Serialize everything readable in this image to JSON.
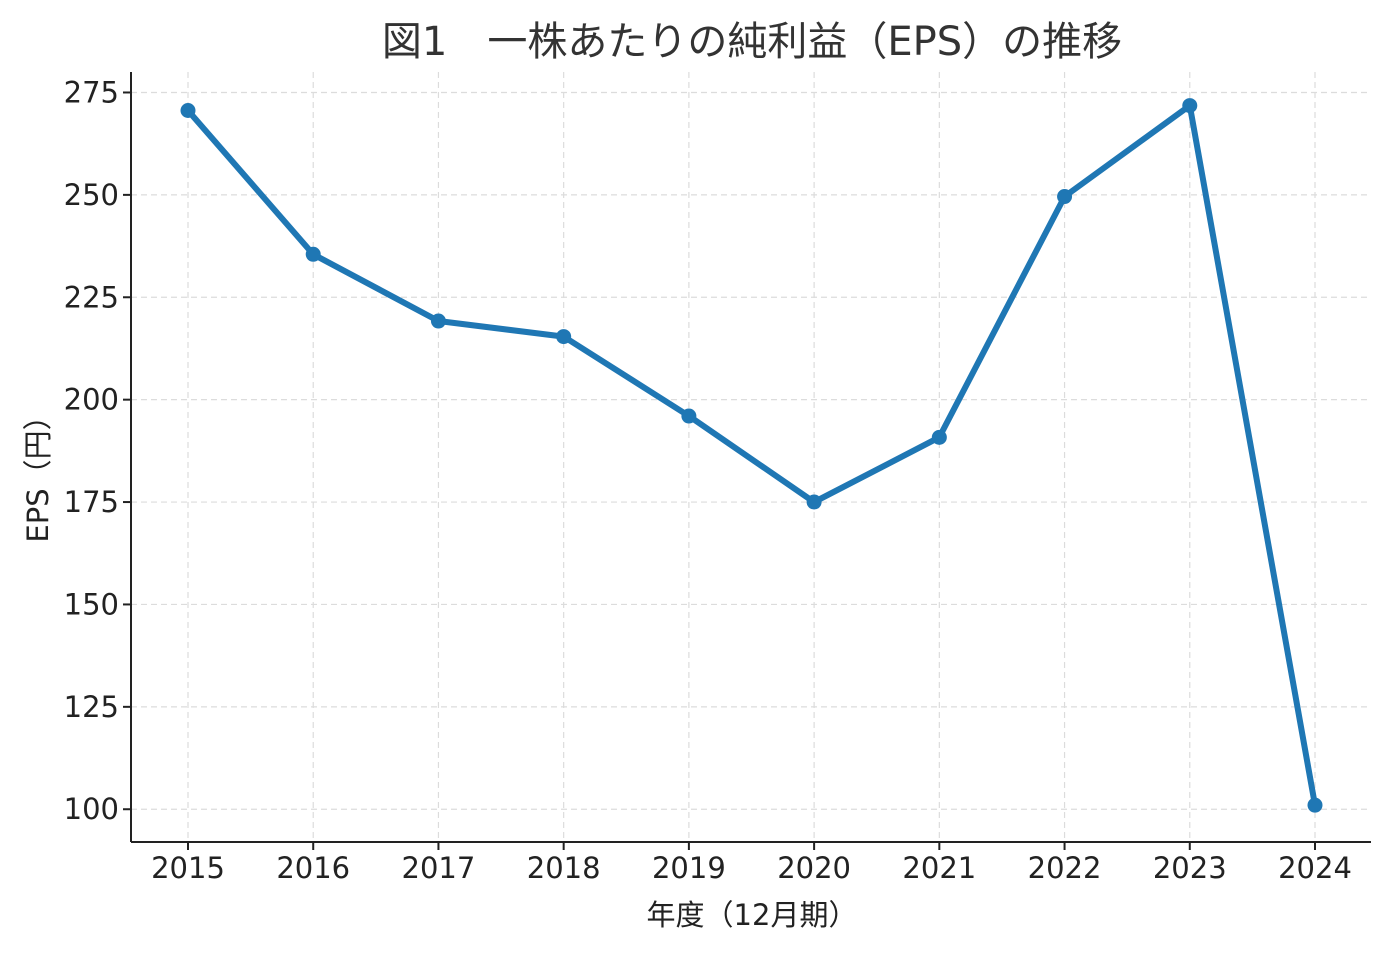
{
  "chart_data": {
    "type": "line",
    "title": "図1　一株あたりの純利益（EPS）の推移",
    "xlabel": "年度（12月期）",
    "ylabel": "EPS（円）",
    "categories": [
      "2015",
      "2016",
      "2017",
      "2018",
      "2019",
      "2020",
      "2021",
      "2022",
      "2023",
      "2024"
    ],
    "series": [
      {
        "values": [
          270.6,
          235.5,
          219.2,
          215.4,
          196.0,
          175.0,
          190.8,
          249.6,
          271.8,
          101.0
        ]
      }
    ],
    "y_ticks": [
      "100",
      "125",
      "150",
      "175",
      "200",
      "225",
      "250",
      "275"
    ],
    "ylim": [
      92,
      280
    ],
    "grid": true,
    "marker": "circle",
    "line_color": "#1f77b4"
  }
}
